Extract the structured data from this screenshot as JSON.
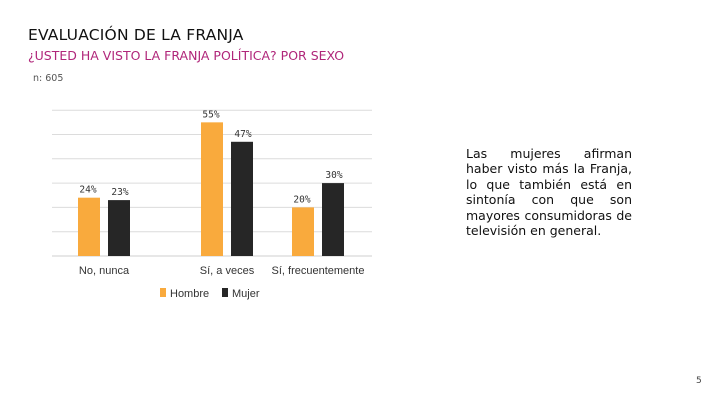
{
  "header": {
    "title": "EVALUACIÓN DE LA FRANJA",
    "subtitle": "¿USTED HA VISTO LA FRANJA POLÍTICA? POR SEXO",
    "sample": "n: 605"
  },
  "note": "Las mujeres afirman haber visto más la Franja, lo que también está en sintonía con que son mayores consumidoras de televisión en general.",
  "page_number": "5",
  "colors": {
    "hombre": "#f9aa3d",
    "mujer": "#262626",
    "accent": "#b0267a"
  },
  "chart_data": {
    "type": "bar",
    "categories": [
      "No, nunca",
      "Sí, a veces",
      "Sí, frecuentemente"
    ],
    "series": [
      {
        "name": "Hombre",
        "values": [
          24,
          55,
          20
        ],
        "labels": [
          "24%",
          "55%",
          "20%"
        ]
      },
      {
        "name": "Mujer",
        "values": [
          23,
          47,
          30
        ],
        "labels": [
          "23%",
          "47%",
          "30%"
        ]
      }
    ],
    "ylim": [
      0,
      60
    ],
    "unit": "%",
    "grid": true,
    "legend": "bottom"
  }
}
